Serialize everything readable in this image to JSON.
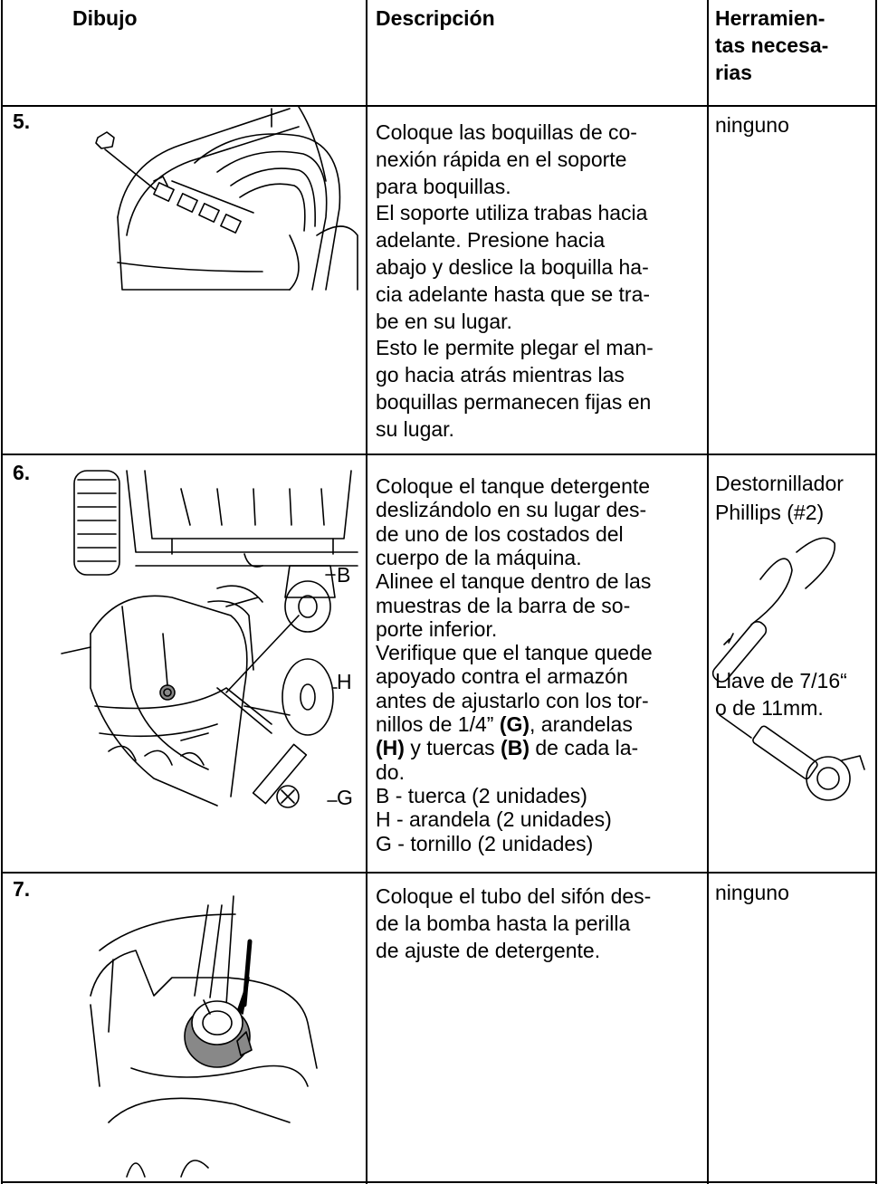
{
  "header": {
    "drawing": "Dibujo",
    "description": "Descripción",
    "tools": [
      "Herramien-",
      "tas necesa-",
      "rias"
    ]
  },
  "rows": [
    {
      "step": "5.",
      "description": [
        "Coloque las boquillas de co-",
        "nexión rápida en el soporte",
        "para boquillas.",
        "El soporte utiliza trabas hacia",
        "adelante.  Presione hacia",
        "abajo y deslice la boquilla ha-",
        "cia adelante hasta que se tra-",
        "be en su lugar.",
        "Esto le permite plegar el man-",
        "go hacia atrás mientras las",
        "boquillas permanecen fijas en",
        "su lugar."
      ],
      "tools": [
        "ninguno"
      ]
    },
    {
      "step": "6.",
      "description": [
        "Coloque el tanque detergente",
        "deslizándolo en su lugar des-",
        "de uno de los costados del",
        "cuerpo de la máquina.",
        "Alinee el tanque dentro de las",
        "muestras de la barra de so-",
        "porte inferior.",
        "Verifique que el tanque quede",
        "apoyado contra el armazón",
        "antes de ajustarlo con los tor-",
        [
          "nillos de 1/4” ",
          {
            "text": "(G)",
            "bold": true
          },
          ", arandelas"
        ],
        [
          {
            "text": "(H)",
            "bold": true
          },
          " y tuercas ",
          {
            "text": "(B)",
            "bold": true
          },
          " de cada la-"
        ],
        "do.",
        "B - tuerca (2 unidades)",
        "H - arandela (2 unidades)",
        "G - tornillo (2 unidades)"
      ],
      "tools": [
        "Destornillador",
        "Phillips (#2)",
        "Llave de 7/16“",
        "o de 11mm."
      ],
      "drawing_labels": [
        "B",
        "H",
        "G"
      ]
    },
    {
      "step": "7.",
      "description": [
        "Coloque el tubo del sifón des-",
        "de la bomba hasta la perilla",
        "de ajuste de detergente."
      ],
      "tools": [
        "ninguno"
      ]
    }
  ]
}
